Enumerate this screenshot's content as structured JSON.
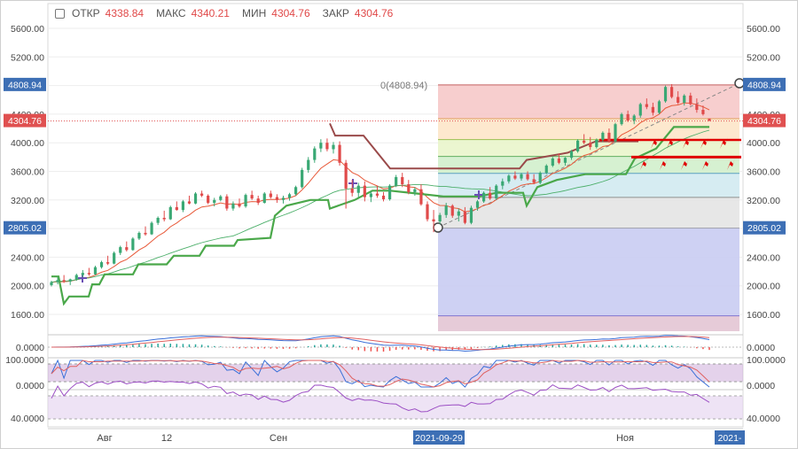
{
  "header": {
    "open_label": "ОТКР",
    "open_value": "4338.84",
    "high_label": "МАКС",
    "high_value": "4340.21",
    "low_label": "МИН",
    "low_value": "4304.76",
    "close_label": "ЗАКР",
    "close_value": "4304.76"
  },
  "chart_data": {
    "type": "candlestick",
    "price_ticks": [
      "5600.00",
      "5200.00",
      "4800.00",
      "4400.00",
      "4000.00",
      "3600.00",
      "3200.00",
      "2800.00",
      "2400.00",
      "2000.00",
      "1600.00"
    ],
    "x_ticks": [
      "Авг",
      "12",
      "Сен",
      "Ноя"
    ],
    "x_highlight_labels": [
      "2021-09-29",
      "2021-"
    ],
    "price_badges": {
      "fib_top": {
        "text": "4808.94",
        "color": "#3d6fb5"
      },
      "last_price": {
        "text": "4304.76",
        "color": "#e05050"
      },
      "fib_bottom": {
        "text": "2805.02",
        "color": "#3d6fb5"
      }
    },
    "fib_label": "0(4808.94)",
    "fib_levels": [
      4808.94,
      4336.8,
      4044.7,
      3808.9,
      3572.8,
      3236.6,
      2805.02
    ],
    "candles": [
      [
        2010,
        2070,
        1990,
        2050
      ],
      [
        2050,
        2120,
        2020,
        2080
      ],
      [
        2080,
        2150,
        2040,
        2060
      ],
      [
        2060,
        2100,
        2010,
        2090
      ],
      [
        2090,
        2170,
        2070,
        2150
      ],
      [
        2150,
        2220,
        2120,
        2180
      ],
      [
        2180,
        2250,
        2140,
        2160
      ],
      [
        2160,
        2280,
        2150,
        2260
      ],
      [
        2260,
        2350,
        2240,
        2330
      ],
      [
        2330,
        2420,
        2290,
        2310
      ],
      [
        2310,
        2480,
        2300,
        2460
      ],
      [
        2460,
        2560,
        2430,
        2540
      ],
      [
        2540,
        2620,
        2480,
        2500
      ],
      [
        2500,
        2680,
        2490,
        2660
      ],
      [
        2660,
        2760,
        2640,
        2740
      ],
      [
        2740,
        2830,
        2700,
        2720
      ],
      [
        2720,
        2900,
        2710,
        2880
      ],
      [
        2880,
        2970,
        2850,
        2950
      ],
      [
        2950,
        3050,
        2900,
        2930
      ],
      [
        2930,
        3120,
        2920,
        3100
      ],
      [
        3100,
        3180,
        3050,
        3060
      ],
      [
        3060,
        3200,
        3030,
        3180
      ],
      [
        3180,
        3260,
        3140,
        3150
      ],
      [
        3150,
        3310,
        3140,
        3290
      ],
      [
        3290,
        3330,
        3240,
        3260
      ],
      [
        3260,
        3280,
        3140,
        3160
      ],
      [
        3160,
        3230,
        3110,
        3200
      ],
      [
        3200,
        3270,
        3180,
        3250
      ],
      [
        3250,
        3280,
        3050,
        3080
      ],
      [
        3080,
        3180,
        3050,
        3150
      ],
      [
        3150,
        3220,
        3090,
        3110
      ],
      [
        3110,
        3290,
        3090,
        3270
      ],
      [
        3270,
        3330,
        3200,
        3220
      ],
      [
        3220,
        3260,
        3130,
        3160
      ],
      [
        3160,
        3310,
        3150,
        3290
      ],
      [
        3290,
        3330,
        3220,
        3240
      ],
      [
        3240,
        3280,
        3160,
        3200
      ],
      [
        3200,
        3260,
        3150,
        3230
      ],
      [
        3230,
        3300,
        3190,
        3280
      ],
      [
        3280,
        3400,
        3260,
        3380
      ],
      [
        3380,
        3650,
        3360,
        3620
      ],
      [
        3620,
        3800,
        3580,
        3760
      ],
      [
        3760,
        3950,
        3720,
        3920
      ],
      [
        3920,
        4050,
        3870,
        4000
      ],
      [
        4000,
        4060,
        3880,
        3910
      ],
      [
        3910,
        4010,
        3850,
        3970
      ],
      [
        3970,
        4020,
        3680,
        3720
      ],
      [
        3720,
        3760,
        3080,
        3360
      ],
      [
        3360,
        3480,
        3250,
        3300
      ],
      [
        3300,
        3440,
        3240,
        3400
      ],
      [
        3400,
        3460,
        3180,
        3240
      ],
      [
        3240,
        3320,
        3170,
        3290
      ],
      [
        3290,
        3400,
        3230,
        3260
      ],
      [
        3260,
        3310,
        3180,
        3210
      ],
      [
        3210,
        3420,
        3190,
        3400
      ],
      [
        3400,
        3550,
        3380,
        3520
      ],
      [
        3520,
        3580,
        3380,
        3420
      ],
      [
        3420,
        3480,
        3280,
        3310
      ],
      [
        3310,
        3380,
        3260,
        3350
      ],
      [
        3350,
        3420,
        3120,
        3140
      ],
      [
        3140,
        3180,
        2900,
        2930
      ],
      [
        2930,
        3060,
        2750,
        2900
      ],
      [
        2900,
        3020,
        2860,
        2990
      ],
      [
        2990,
        3160,
        2950,
        3120
      ],
      [
        3120,
        3140,
        2950,
        2980
      ],
      [
        2980,
        3080,
        2900,
        3040
      ],
      [
        3040,
        3100,
        2860,
        2880
      ],
      [
        2880,
        3120,
        2860,
        3090
      ],
      [
        3090,
        3200,
        3050,
        3180
      ],
      [
        3180,
        3320,
        3160,
        3300
      ],
      [
        3300,
        3380,
        3200,
        3220
      ],
      [
        3220,
        3420,
        3200,
        3400
      ],
      [
        3400,
        3500,
        3350,
        3460
      ],
      [
        3460,
        3560,
        3430,
        3540
      ],
      [
        3540,
        3600,
        3480,
        3500
      ],
      [
        3500,
        3580,
        3470,
        3560
      ],
      [
        3560,
        3600,
        3470,
        3490
      ],
      [
        3490,
        3560,
        3420,
        3440
      ],
      [
        3440,
        3600,
        3420,
        3580
      ],
      [
        3580,
        3700,
        3560,
        3680
      ],
      [
        3680,
        3800,
        3660,
        3780
      ],
      [
        3780,
        3850,
        3700,
        3720
      ],
      [
        3720,
        3800,
        3680,
        3790
      ],
      [
        3790,
        3900,
        3760,
        3880
      ],
      [
        3880,
        4050,
        3860,
        4030
      ],
      [
        4030,
        4120,
        3980,
        4000
      ],
      [
        4000,
        4080,
        3900,
        3940
      ],
      [
        3940,
        4060,
        3920,
        4040
      ],
      [
        4040,
        4160,
        4010,
        4140
      ],
      [
        4140,
        4200,
        4000,
        4020
      ],
      [
        4020,
        4280,
        4000,
        4260
      ],
      [
        4260,
        4420,
        4240,
        4400
      ],
      [
        4400,
        4450,
        4290,
        4310
      ],
      [
        4310,
        4400,
        4260,
        4380
      ],
      [
        4380,
        4560,
        4350,
        4540
      ],
      [
        4540,
        4620,
        4470,
        4500
      ],
      [
        4500,
        4560,
        4380,
        4420
      ],
      [
        4420,
        4600,
        4400,
        4580
      ],
      [
        4580,
        4800,
        4560,
        4780
      ],
      [
        4780,
        4820,
        4620,
        4640
      ],
      [
        4640,
        4720,
        4540,
        4560
      ],
      [
        4560,
        4680,
        4520,
        4660
      ],
      [
        4660,
        4700,
        4520,
        4540
      ],
      [
        4540,
        4620,
        4420,
        4460
      ],
      [
        4460,
        4520,
        4380,
        4400
      ],
      [
        4338.84,
        4340.21,
        4304.76,
        4304.76
      ]
    ],
    "indicator_ticks": {
      "macd": [
        "0.0000"
      ],
      "stoch": [
        "100.0000",
        "0.0000"
      ],
      "rsi": [
        "40.0000"
      ]
    }
  }
}
